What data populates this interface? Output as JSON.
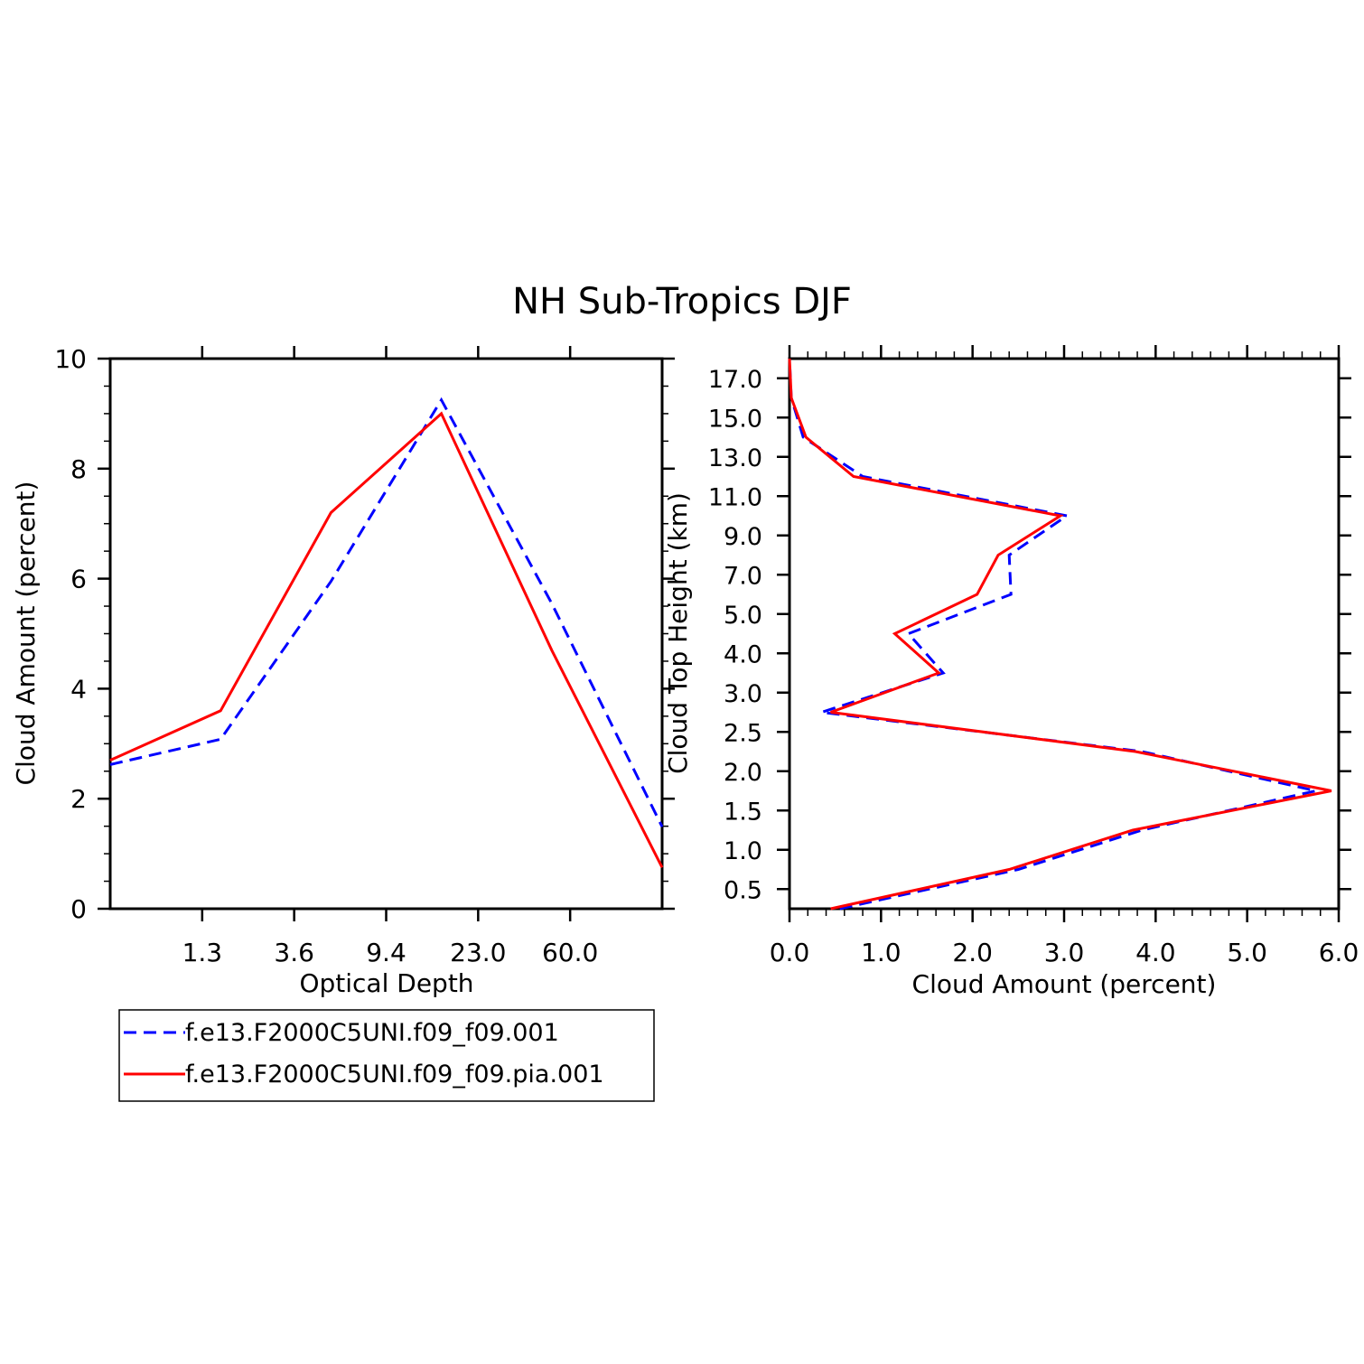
{
  "title": "NH Sub-Tropics DJF",
  "colors": {
    "model1": "#0000ff",
    "model2": "#ff0000",
    "axes": "#000000"
  },
  "legend": {
    "placement": "below-left",
    "entries": [
      {
        "label": "f.e13.F2000C5UNI.f09_f09.001",
        "color": "#0000ff",
        "dash": "dashed"
      },
      {
        "label": "f.e13.F2000C5UNI.f09_f09.pia.001",
        "color": "#ff0000",
        "dash": "solid"
      }
    ]
  },
  "chart_data": [
    {
      "type": "line",
      "xlabel": "Optical Depth",
      "ylabel": "Cloud Amount (percent)",
      "ylim": [
        0,
        10
      ],
      "y_ticks": [
        "0",
        "2",
        "4",
        "6",
        "8",
        "10"
      ],
      "x_tick_labels": [
        "1.3",
        "3.6",
        "9.4",
        "23.0",
        "60.0"
      ],
      "x_bins": 6,
      "series": [
        {
          "name": "f.e13.F2000C5UNI.f09_f09.001",
          "color": "#0000ff",
          "dash": "dashed",
          "values": [
            2.62,
            3.08,
            5.95,
            9.25,
            5.55,
            1.49
          ]
        },
        {
          "name": "f.e13.F2000C5UNI.f09_f09.pia.001",
          "color": "#ff0000",
          "dash": "solid",
          "values": [
            2.7,
            3.6,
            7.2,
            9.0,
            4.7,
            0.75
          ]
        }
      ],
      "grid": false
    },
    {
      "type": "line",
      "orientation": "vertical-profile",
      "xlabel": "Cloud Amount (percent)",
      "ylabel": "Cloud Top Height (km)",
      "xlim": [
        0,
        6
      ],
      "x_ticks": [
        "0.0",
        "1.0",
        "2.0",
        "3.0",
        "4.0",
        "5.0",
        "6.0"
      ],
      "y_tick_labels": [
        "0.5",
        "1.0",
        "1.5",
        "2.0",
        "2.5",
        "3.0",
        "4.0",
        "5.0",
        "7.0",
        "9.0",
        "11.0",
        "13.0",
        "15.0",
        "17.0"
      ],
      "levels": [
        "0.25",
        "0.75",
        "1.25",
        "1.75",
        "2.25",
        "2.75",
        "3.5",
        "4.5",
        "6.0",
        "8.0",
        "10.0",
        "12.0",
        "14.0",
        "16.0",
        "18.0"
      ],
      "series": [
        {
          "name": "f.e13.F2000C5UNI.f09_f09.001",
          "color": "#0000ff",
          "dash": "dashed",
          "values": [
            0.55,
            2.5,
            3.85,
            5.75,
            3.85,
            0.35,
            1.68,
            1.3,
            2.42,
            2.4,
            3.03,
            0.8,
            0.15,
            0.02,
            0.0
          ]
        },
        {
          "name": "f.e13.F2000C5UNI.f09_f09.pia.001",
          "color": "#ff0000",
          "dash": "solid",
          "values": [
            0.45,
            2.4,
            3.75,
            5.92,
            3.78,
            0.45,
            1.63,
            1.15,
            2.05,
            2.28,
            2.96,
            0.7,
            0.18,
            0.02,
            0.0
          ]
        }
      ],
      "grid": false
    }
  ]
}
